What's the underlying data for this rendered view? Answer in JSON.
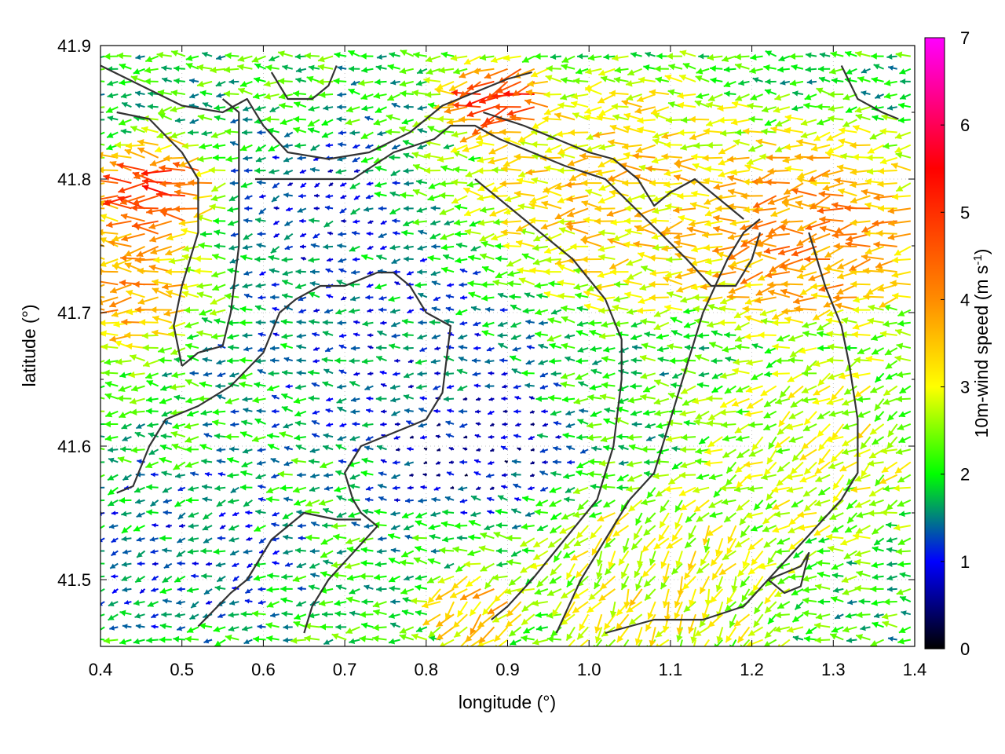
{
  "chart_data": {
    "type": "vector-field",
    "xlabel": "longitude (°)",
    "ylabel": "latitude (°)",
    "xlim": [
      0.4,
      1.4
    ],
    "ylim": [
      41.45,
      41.9
    ],
    "x_ticks": [
      "0.4",
      "0.5",
      "0.6",
      "0.7",
      "0.8",
      "0.9",
      "1.0",
      "1.1",
      "1.2",
      "1.3",
      "1.4"
    ],
    "y_ticks": [
      "41.5",
      "41.6",
      "41.7",
      "41.8",
      "41.9"
    ],
    "colorbar": {
      "label_main": "10m-wind speed (m s",
      "label_sup": "-1",
      "label_close": ")",
      "range": [
        0,
        7
      ],
      "ticks": [
        "0",
        "1",
        "2",
        "3",
        "4",
        "5",
        "6",
        "7"
      ],
      "stops": [
        "#000000",
        "#0000ff",
        "#00ff00",
        "#ffff00",
        "#ff8c00",
        "#ff0000",
        "#ff00ff"
      ]
    },
    "grid": true,
    "wind_regions": [
      {
        "lon": 0.48,
        "lat": 41.79,
        "speed": 5.6,
        "dir_deg": 180,
        "radius": 0.05
      },
      {
        "lon": 0.43,
        "lat": 41.72,
        "speed": 4.1,
        "dir_deg": 180,
        "radius": 0.07
      },
      {
        "lon": 0.9,
        "lat": 41.86,
        "speed": 5.8,
        "dir_deg": 200,
        "radius": 0.04
      },
      {
        "lon": 1.05,
        "lat": 41.79,
        "speed": 3.6,
        "dir_deg": 185,
        "radius": 0.12
      },
      {
        "lon": 1.28,
        "lat": 41.76,
        "speed": 4.4,
        "dir_deg": 190,
        "radius": 0.1
      },
      {
        "lon": 0.75,
        "lat": 41.68,
        "speed": 1.2,
        "dir_deg": 180,
        "radius": 0.12
      },
      {
        "lon": 0.85,
        "lat": 41.6,
        "speed": 0.5,
        "dir_deg": 180,
        "radius": 0.08
      },
      {
        "lon": 0.65,
        "lat": 41.78,
        "speed": 1.0,
        "dir_deg": 200,
        "radius": 0.08
      },
      {
        "lon": 1.1,
        "lat": 41.5,
        "speed": 3.2,
        "dir_deg": 250,
        "radius": 0.1
      },
      {
        "lon": 0.5,
        "lat": 41.52,
        "speed": 1.3,
        "dir_deg": 200,
        "radius": 0.1
      },
      {
        "lon": 1.3,
        "lat": 41.6,
        "speed": 3.0,
        "dir_deg": 220,
        "radius": 0.1
      },
      {
        "lon": 0.87,
        "lat": 41.48,
        "speed": 3.8,
        "dir_deg": 240,
        "radius": 0.04
      }
    ],
    "contours": [
      [
        [
          0.4,
          41.885
        ],
        [
          0.45,
          41.87
        ],
        [
          0.5,
          41.855
        ],
        [
          0.55,
          41.85
        ],
        [
          0.58,
          41.86
        ],
        [
          0.6,
          41.84
        ],
        [
          0.63,
          41.82
        ],
        [
          0.68,
          41.815
        ],
        [
          0.73,
          41.82
        ],
        [
          0.78,
          41.835
        ],
        [
          0.82,
          41.855
        ],
        [
          0.86,
          41.865
        ],
        [
          0.9,
          41.875
        ],
        [
          0.93,
          41.88
        ]
      ],
      [
        [
          0.42,
          41.85
        ],
        [
          0.46,
          41.845
        ],
        [
          0.5,
          41.82
        ],
        [
          0.52,
          41.8
        ],
        [
          0.52,
          41.76
        ],
        [
          0.5,
          41.72
        ],
        [
          0.49,
          41.69
        ],
        [
          0.5,
          41.66
        ]
      ],
      [
        [
          0.5,
          41.66
        ],
        [
          0.52,
          41.67
        ],
        [
          0.55,
          41.675
        ],
        [
          0.56,
          41.7
        ],
        [
          0.57,
          41.75
        ],
        [
          0.57,
          41.8
        ],
        [
          0.57,
          41.85
        ],
        [
          0.55,
          41.86
        ]
      ],
      [
        [
          0.42,
          41.565
        ],
        [
          0.44,
          41.57
        ],
        [
          0.46,
          41.6
        ],
        [
          0.48,
          41.62
        ],
        [
          0.52,
          41.63
        ],
        [
          0.56,
          41.645
        ],
        [
          0.6,
          41.67
        ],
        [
          0.62,
          41.7
        ],
        [
          0.64,
          41.71
        ],
        [
          0.67,
          41.72
        ],
        [
          0.7,
          41.72
        ],
        [
          0.74,
          41.73
        ],
        [
          0.76,
          41.73
        ],
        [
          0.78,
          41.72
        ],
        [
          0.8,
          41.7
        ],
        [
          0.83,
          41.69
        ],
        [
          0.82,
          41.64
        ],
        [
          0.8,
          41.62
        ],
        [
          0.76,
          41.61
        ],
        [
          0.72,
          41.6
        ],
        [
          0.7,
          41.58
        ],
        [
          0.71,
          41.56
        ],
        [
          0.72,
          41.55
        ],
        [
          0.74,
          41.54
        ],
        [
          0.71,
          41.52
        ],
        [
          0.68,
          41.5
        ],
        [
          0.66,
          41.48
        ],
        [
          0.65,
          41.46
        ]
      ],
      [
        [
          0.52,
          41.465
        ],
        [
          0.56,
          41.49
        ],
        [
          0.58,
          41.5
        ],
        [
          0.61,
          41.53
        ],
        [
          0.65,
          41.55
        ],
        [
          0.69,
          41.545
        ],
        [
          0.72,
          41.545
        ]
      ],
      [
        [
          0.59,
          41.8
        ],
        [
          0.62,
          41.8
        ],
        [
          0.66,
          41.8
        ],
        [
          0.71,
          41.8
        ],
        [
          0.76,
          41.82
        ],
        [
          0.81,
          41.83
        ],
        [
          0.83,
          41.84
        ],
        [
          0.86,
          41.84
        ],
        [
          0.89,
          41.83
        ],
        [
          0.93,
          41.82
        ],
        [
          0.97,
          41.81
        ],
        [
          1.02,
          41.8
        ],
        [
          1.07,
          41.77
        ],
        [
          1.12,
          41.74
        ],
        [
          1.15,
          41.72
        ],
        [
          1.18,
          41.72
        ],
        [
          1.2,
          41.74
        ],
        [
          1.21,
          41.76
        ]
      ],
      [
        [
          0.87,
          41.85
        ],
        [
          0.92,
          41.84
        ],
        [
          0.96,
          41.83
        ],
        [
          1.0,
          41.82
        ],
        [
          1.03,
          41.815
        ],
        [
          1.06,
          41.8
        ],
        [
          1.08,
          41.78
        ],
        [
          1.1,
          41.79
        ],
        [
          1.13,
          41.8
        ],
        [
          1.15,
          41.79
        ],
        [
          1.17,
          41.78
        ],
        [
          1.19,
          41.77
        ]
      ],
      [
        [
          0.86,
          41.8
        ],
        [
          0.9,
          41.78
        ],
        [
          0.94,
          41.76
        ],
        [
          0.98,
          41.74
        ],
        [
          1.02,
          41.71
        ],
        [
          1.04,
          41.68
        ],
        [
          1.04,
          41.65
        ],
        [
          1.03,
          41.6
        ],
        [
          1.01,
          41.56
        ],
        [
          0.97,
          41.53
        ],
        [
          0.93,
          41.5
        ],
        [
          0.9,
          41.48
        ],
        [
          0.88,
          41.47
        ]
      ],
      [
        [
          0.96,
          41.46
        ],
        [
          0.99,
          41.5
        ],
        [
          1.02,
          41.53
        ],
        [
          1.05,
          41.56
        ],
        [
          1.08,
          41.58
        ],
        [
          1.1,
          41.62
        ],
        [
          1.12,
          41.66
        ],
        [
          1.14,
          41.7
        ],
        [
          1.17,
          41.74
        ],
        [
          1.19,
          41.76
        ],
        [
          1.21,
          41.77
        ]
      ],
      [
        [
          1.27,
          41.76
        ],
        [
          1.29,
          41.72
        ],
        [
          1.31,
          41.69
        ],
        [
          1.32,
          41.66
        ],
        [
          1.33,
          41.62
        ],
        [
          1.33,
          41.58
        ],
        [
          1.31,
          41.56
        ],
        [
          1.28,
          41.54
        ],
        [
          1.25,
          41.52
        ],
        [
          1.22,
          41.5
        ],
        [
          1.19,
          41.48
        ],
        [
          1.14,
          41.47
        ],
        [
          1.08,
          41.47
        ],
        [
          1.02,
          41.46
        ]
      ],
      [
        [
          1.24,
          41.505
        ],
        [
          1.26,
          41.51
        ],
        [
          1.27,
          41.52
        ],
        [
          1.26,
          41.495
        ],
        [
          1.24,
          41.49
        ],
        [
          1.22,
          41.5
        ],
        [
          1.24,
          41.505
        ]
      ],
      [
        [
          1.31,
          41.885
        ],
        [
          1.33,
          41.86
        ],
        [
          1.36,
          41.85
        ],
        [
          1.38,
          41.845
        ]
      ],
      [
        [
          0.61,
          41.88
        ],
        [
          0.63,
          41.86
        ],
        [
          0.66,
          41.86
        ],
        [
          0.68,
          41.87
        ],
        [
          0.69,
          41.885
        ]
      ]
    ]
  }
}
